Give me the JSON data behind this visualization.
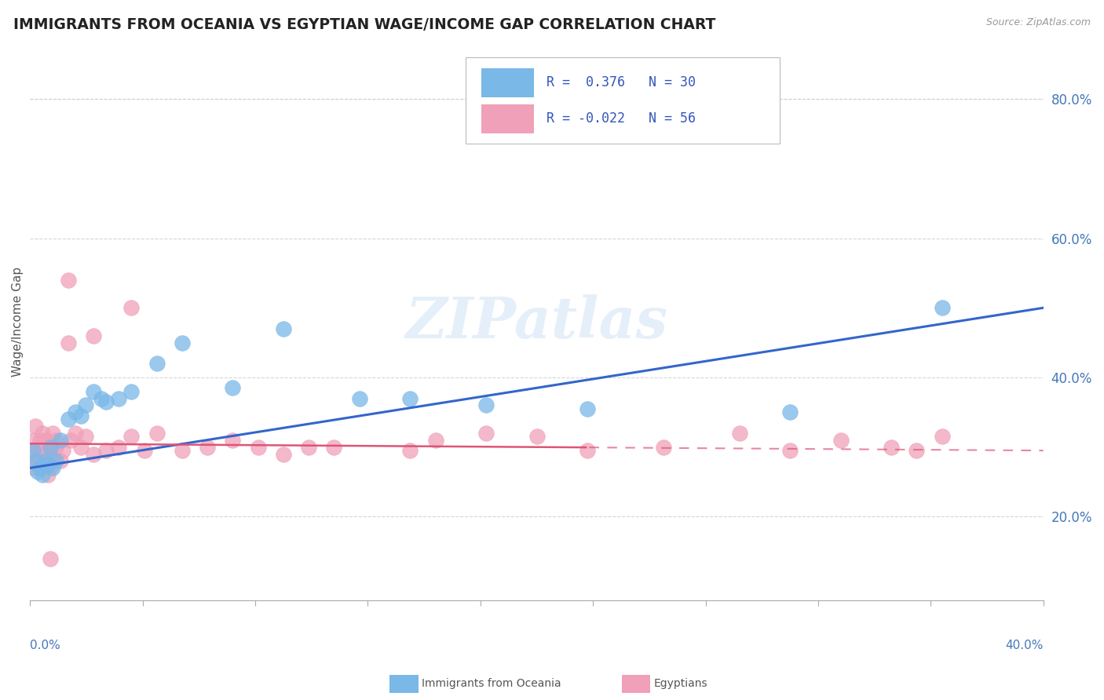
{
  "title": "IMMIGRANTS FROM OCEANIA VS EGYPTIAN WAGE/INCOME GAP CORRELATION CHART",
  "source": "Source: ZipAtlas.com",
  "ylabel": "Wage/Income Gap",
  "yticks_labels": [
    "20.0%",
    "40.0%",
    "60.0%",
    "80.0%"
  ],
  "ytick_vals": [
    0.2,
    0.4,
    0.6,
    0.8
  ],
  "xtick_label_left": "0.0%",
  "xtick_label_right": "40.0%",
  "xlim": [
    0.0,
    0.4
  ],
  "ylim": [
    0.08,
    0.88
  ],
  "blue_color": "#7ab8e8",
  "blue_line_color": "#3366cc",
  "pink_color": "#f0a0b8",
  "pink_line_color": "#dd5577",
  "grid_color": "#cccccc",
  "plot_bg": "#ffffff",
  "fig_bg": "#ffffff",
  "watermark": "ZIPatlas",
  "legend_R_blue": "R =  0.376",
  "legend_N_blue": "N = 30",
  "legend_R_pink": "R = -0.022",
  "legend_N_pink": "N = 56",
  "blue_x": [
    0.001,
    0.002,
    0.003,
    0.004,
    0.005,
    0.006,
    0.007,
    0.008,
    0.009,
    0.01,
    0.012,
    0.015,
    0.018,
    0.02,
    0.022,
    0.025,
    0.028,
    0.03,
    0.035,
    0.04,
    0.05,
    0.06,
    0.08,
    0.1,
    0.13,
    0.15,
    0.18,
    0.22,
    0.3,
    0.36
  ],
  "blue_y": [
    0.295,
    0.28,
    0.265,
    0.27,
    0.26,
    0.28,
    0.275,
    0.3,
    0.27,
    0.28,
    0.31,
    0.34,
    0.35,
    0.345,
    0.36,
    0.38,
    0.37,
    0.365,
    0.37,
    0.38,
    0.42,
    0.45,
    0.385,
    0.47,
    0.37,
    0.37,
    0.36,
    0.355,
    0.35,
    0.5
  ],
  "pink_x": [
    0.001,
    0.001,
    0.002,
    0.002,
    0.003,
    0.003,
    0.004,
    0.004,
    0.005,
    0.005,
    0.006,
    0.006,
    0.007,
    0.007,
    0.008,
    0.008,
    0.009,
    0.009,
    0.01,
    0.01,
    0.012,
    0.013,
    0.015,
    0.016,
    0.018,
    0.02,
    0.022,
    0.025,
    0.03,
    0.035,
    0.04,
    0.045,
    0.05,
    0.06,
    0.07,
    0.08,
    0.1,
    0.12,
    0.15,
    0.16,
    0.18,
    0.2,
    0.22,
    0.25,
    0.28,
    0.3,
    0.32,
    0.34,
    0.35,
    0.36,
    0.015,
    0.025,
    0.04,
    0.008,
    0.09,
    0.11
  ],
  "pink_y": [
    0.31,
    0.27,
    0.33,
    0.29,
    0.3,
    0.28,
    0.31,
    0.27,
    0.32,
    0.295,
    0.28,
    0.31,
    0.26,
    0.295,
    0.3,
    0.27,
    0.32,
    0.285,
    0.3,
    0.31,
    0.28,
    0.295,
    0.54,
    0.31,
    0.32,
    0.3,
    0.315,
    0.29,
    0.295,
    0.3,
    0.315,
    0.295,
    0.32,
    0.295,
    0.3,
    0.31,
    0.29,
    0.3,
    0.295,
    0.31,
    0.32,
    0.315,
    0.295,
    0.3,
    0.32,
    0.295,
    0.31,
    0.3,
    0.295,
    0.315,
    0.45,
    0.46,
    0.5,
    0.14,
    0.3,
    0.3
  ],
  "blue_line_x0": 0.0,
  "blue_line_y0": 0.27,
  "blue_line_x1": 0.4,
  "blue_line_y1": 0.5,
  "pink_line_x0": 0.0,
  "pink_line_y0": 0.305,
  "pink_line_x1": 0.4,
  "pink_line_y1": 0.295
}
